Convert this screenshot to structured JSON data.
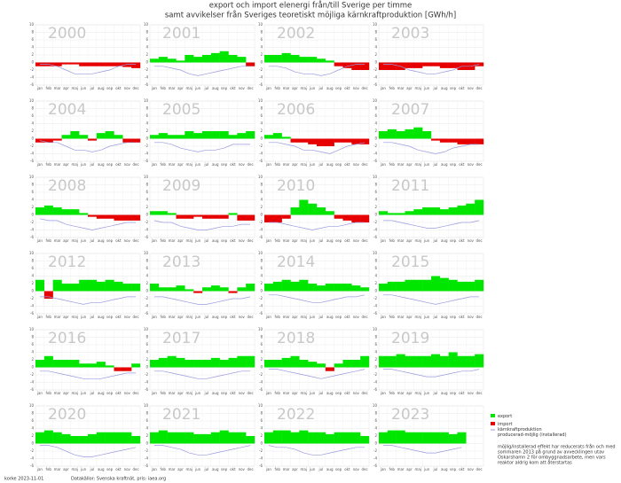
{
  "title": [
    "export och import elenergi från/till Sverige per timme",
    "samt avvikelser från Sveriges teoretiskt möjliga kärnkraftproduktion [GWh/h]"
  ],
  "legend": [
    {
      "name": "export",
      "color": "#00e600"
    },
    {
      "name": "import",
      "color": "#e60000"
    },
    {
      "name": "kärnkraftproduktion",
      "color": "#9a9ae0"
    },
    {
      "name": "producerad-möjlig (installerad)",
      "color": "#9a9ae0"
    }
  ],
  "note": [
    "möjlig/installerad effekt har reducerats från och med",
    "sommaren 2013 på grund av avvecklingen utav",
    "Oskarshamn 2 för ombyggnadsarbete, men vars",
    "reaktor aldrig kom att återstartas"
  ],
  "footer": [
    "korke 2023-11-01",
    "Datakällor: Svenska kraftnät, pris: iaea.org"
  ],
  "chart_data": [
    {
      "type": "area",
      "title": "2000",
      "categories": [
        "jan",
        "feb",
        "mar",
        "apr",
        "maj",
        "jun",
        "jul",
        "aug",
        "sep",
        "okt",
        "nov",
        "dec"
      ],
      "values": [
        -1,
        -1,
        -1,
        -0.5,
        -0.5,
        -1,
        -1,
        -1,
        -1,
        -1,
        -1.2,
        -1.5
      ],
      "line": [
        -0.5,
        -0.5,
        -1,
        -2,
        -3,
        -3,
        -3,
        -2.5,
        -2,
        -1,
        -0.5,
        -0.5
      ],
      "ylim": [
        -6,
        10
      ],
      "yticks": [
        -6,
        -4,
        -2,
        0,
        2,
        4,
        6,
        8,
        10
      ]
    },
    {
      "type": "area",
      "title": "2001",
      "categories": [
        "jan",
        "feb",
        "mar",
        "apr",
        "maj",
        "jun",
        "jul",
        "aug",
        "sep",
        "okt",
        "nov",
        "dec"
      ],
      "values": [
        1,
        1.5,
        1,
        0.5,
        2,
        1.5,
        2,
        2.5,
        3,
        2,
        1.5,
        -1
      ],
      "line": [
        -1,
        -1,
        -1.5,
        -2,
        -3,
        -3.5,
        -3,
        -2.5,
        -2,
        -1.5,
        -1,
        -1
      ],
      "ylim": [
        -6,
        10
      ],
      "yticks": [
        -6,
        -4,
        -2,
        0,
        2,
        4,
        6,
        8,
        10
      ]
    },
    {
      "type": "area",
      "title": "2002",
      "categories": [
        "jan",
        "feb",
        "mar",
        "apr",
        "maj",
        "jun",
        "jul",
        "aug",
        "sep",
        "okt",
        "nov",
        "dec"
      ],
      "values": [
        2,
        2,
        2.5,
        2,
        1.5,
        1.5,
        1,
        0.5,
        -1,
        -1.5,
        -2,
        -2
      ],
      "line": [
        -1,
        -1,
        -1.5,
        -2.5,
        -3,
        -3,
        -3.5,
        -3,
        -2,
        -1,
        -0.5,
        -0.5
      ],
      "ylim": [
        -6,
        10
      ],
      "yticks": [
        -6,
        -4,
        -2,
        0,
        2,
        4,
        6,
        8,
        10
      ]
    },
    {
      "type": "area",
      "title": "2003",
      "categories": [
        "jan",
        "feb",
        "mar",
        "apr",
        "maj",
        "jun",
        "jul",
        "aug",
        "sep",
        "okt",
        "nov",
        "dec"
      ],
      "values": [
        -2,
        -2,
        -2,
        -1.5,
        -1.5,
        -1,
        -1,
        -1.5,
        -1.5,
        -2,
        -2,
        -1
      ],
      "line": [
        -0.5,
        -0.5,
        -1,
        -2,
        -2.5,
        -3,
        -3,
        -2.5,
        -2,
        -1,
        -1,
        -0.5
      ],
      "ylim": [
        -6,
        10
      ],
      "yticks": [
        -6,
        -4,
        -2,
        0,
        2,
        4,
        6,
        8,
        10
      ]
    },
    {
      "type": "area",
      "title": "2004",
      "categories": [
        "jan",
        "feb",
        "mar",
        "apr",
        "maj",
        "jun",
        "jul",
        "aug",
        "sep",
        "okt",
        "nov",
        "dec"
      ],
      "values": [
        -1,
        -1,
        -0.5,
        1,
        2,
        1,
        -0.5,
        1.5,
        2,
        1,
        -1,
        -1
      ],
      "line": [
        -0.5,
        -1,
        -1,
        -2,
        -3,
        -3,
        -3.5,
        -3,
        -2,
        -1.5,
        -1,
        -1
      ],
      "ylim": [
        -6,
        10
      ],
      "yticks": [
        -6,
        -4,
        -2,
        0,
        2,
        4,
        6,
        8,
        10
      ]
    },
    {
      "type": "area",
      "title": "2005",
      "categories": [
        "jan",
        "feb",
        "mar",
        "apr",
        "maj",
        "jun",
        "jul",
        "aug",
        "sep",
        "okt",
        "nov",
        "dec"
      ],
      "values": [
        1,
        1.5,
        1,
        1,
        2,
        1.5,
        2,
        2,
        2,
        1,
        1.5,
        2
      ],
      "line": [
        -1,
        -1,
        -1.5,
        -2.5,
        -3,
        -3.5,
        -3,
        -3,
        -2.5,
        -1.5,
        -1.5,
        -1.5
      ],
      "ylim": [
        -6,
        10
      ],
      "yticks": [
        -6,
        -4,
        -2,
        0,
        2,
        4,
        6,
        8,
        10
      ]
    },
    {
      "type": "area",
      "title": "2006",
      "categories": [
        "jan",
        "feb",
        "mar",
        "apr",
        "maj",
        "jun",
        "jul",
        "aug",
        "sep",
        "okt",
        "nov",
        "dec"
      ],
      "values": [
        1,
        1.5,
        0.5,
        -1,
        -1,
        -1.5,
        -2,
        -2,
        -1,
        -1,
        -1.5,
        -1.5
      ],
      "line": [
        -1,
        -1,
        -1.5,
        -2,
        -3,
        -3,
        -3.5,
        -4,
        -3,
        -2,
        -1.5,
        -1
      ],
      "ylim": [
        -6,
        10
      ],
      "yticks": [
        -6,
        -4,
        -2,
        0,
        2,
        4,
        6,
        8,
        10
      ]
    },
    {
      "type": "area",
      "title": "2007",
      "categories": [
        "jan",
        "feb",
        "mar",
        "apr",
        "maj",
        "jun",
        "jul",
        "aug",
        "sep",
        "okt",
        "nov",
        "dec"
      ],
      "values": [
        2,
        2.5,
        2,
        2.5,
        3,
        2,
        -0.5,
        -1,
        -1,
        -1.5,
        -1.5,
        -1.5
      ],
      "line": [
        -1,
        -1,
        -1.5,
        -2,
        -3,
        -3.5,
        -4,
        -3.5,
        -2.5,
        -2,
        -1.5,
        -1.5
      ],
      "ylim": [
        -6,
        10
      ],
      "yticks": [
        -6,
        -4,
        -2,
        0,
        2,
        4,
        6,
        8,
        10
      ]
    },
    {
      "type": "area",
      "title": "2008",
      "categories": [
        "jan",
        "feb",
        "mar",
        "apr",
        "maj",
        "jun",
        "jul",
        "aug",
        "sep",
        "okt",
        "nov",
        "dec"
      ],
      "values": [
        2,
        2.5,
        2,
        1.5,
        1.5,
        0.5,
        -0.5,
        -1,
        -1,
        -1.5,
        -1.5,
        -1.5
      ],
      "line": [
        -1,
        -1.5,
        -1.5,
        -2.5,
        -3,
        -3.5,
        -4,
        -3.5,
        -3,
        -2.5,
        -2,
        -2
      ],
      "ylim": [
        -6,
        10
      ],
      "yticks": [
        -6,
        -4,
        -2,
        0,
        2,
        4,
        6,
        8,
        10
      ]
    },
    {
      "type": "area",
      "title": "2009",
      "categories": [
        "jan",
        "feb",
        "mar",
        "apr",
        "maj",
        "jun",
        "jul",
        "aug",
        "sep",
        "okt",
        "nov",
        "dec"
      ],
      "values": [
        1,
        1,
        0.5,
        -1,
        -1,
        -0.5,
        -1,
        -1,
        -1,
        0.5,
        -1.5,
        -1.5
      ],
      "line": [
        -1.5,
        -2,
        -2,
        -3,
        -3.5,
        -4,
        -4,
        -3.5,
        -3,
        -3,
        -2.5,
        -2.5
      ],
      "ylim": [
        -6,
        10
      ],
      "yticks": [
        -6,
        -4,
        -2,
        0,
        2,
        4,
        6,
        8,
        10
      ]
    },
    {
      "type": "area",
      "title": "2010",
      "categories": [
        "jan",
        "feb",
        "mar",
        "apr",
        "maj",
        "jun",
        "jul",
        "aug",
        "sep",
        "okt",
        "nov",
        "dec"
      ],
      "values": [
        -2,
        -2,
        -1,
        2,
        4,
        3,
        2,
        1,
        -1,
        -1.5,
        -2,
        -2
      ],
      "line": [
        -2,
        -2,
        -2.5,
        -3,
        -3.5,
        -4,
        -3.5,
        -3,
        -3,
        -2.5,
        -2,
        -2
      ],
      "ylim": [
        -6,
        10
      ],
      "yticks": [
        -6,
        -4,
        -2,
        0,
        2,
        4,
        6,
        8,
        10
      ]
    },
    {
      "type": "area",
      "title": "2011",
      "categories": [
        "jan",
        "feb",
        "mar",
        "apr",
        "maj",
        "jun",
        "jul",
        "aug",
        "sep",
        "okt",
        "nov",
        "dec"
      ],
      "values": [
        1,
        0.5,
        0.5,
        1,
        1.5,
        2,
        2,
        1.5,
        2,
        2.5,
        3,
        4
      ],
      "line": [
        -1.5,
        -1.5,
        -2,
        -2.5,
        -3,
        -3.5,
        -3.5,
        -3,
        -2.5,
        -2,
        -2,
        -1.5
      ],
      "ylim": [
        -6,
        10
      ],
      "yticks": [
        -6,
        -4,
        -2,
        0,
        2,
        4,
        6,
        8,
        10
      ]
    },
    {
      "type": "area",
      "title": "2012",
      "categories": [
        "jan",
        "feb",
        "mar",
        "apr",
        "maj",
        "jun",
        "jul",
        "aug",
        "sep",
        "okt",
        "nov",
        "dec"
      ],
      "values": [
        3,
        -2,
        3,
        2,
        2,
        3,
        3,
        2.5,
        3,
        2.5,
        2,
        2
      ],
      "line": [
        -1.5,
        -1.5,
        -2,
        -2.5,
        -3,
        -3.5,
        -3,
        -3,
        -2.5,
        -2,
        -1.5,
        -1.5
      ],
      "ylim": [
        -6,
        10
      ],
      "yticks": [
        -6,
        -4,
        -2,
        0,
        2,
        4,
        6,
        8,
        10
      ]
    },
    {
      "type": "area",
      "title": "2013",
      "categories": [
        "jan",
        "feb",
        "mar",
        "apr",
        "maj",
        "jun",
        "jul",
        "aug",
        "sep",
        "okt",
        "nov",
        "dec"
      ],
      "values": [
        2,
        1,
        1,
        1.5,
        0.5,
        -0.5,
        1,
        1.5,
        1,
        -0.5,
        1,
        2
      ],
      "line": [
        -1.5,
        -1.5,
        -2,
        -2.5,
        -3,
        -3.5,
        -3.5,
        -3,
        -2.5,
        -2,
        -2,
        -1.5
      ],
      "ylim": [
        -6,
        10
      ],
      "yticks": [
        -6,
        -4,
        -2,
        0,
        2,
        4,
        6,
        8,
        10
      ]
    },
    {
      "type": "area",
      "title": "2014",
      "categories": [
        "jan",
        "feb",
        "mar",
        "apr",
        "maj",
        "jun",
        "jul",
        "aug",
        "sep",
        "okt",
        "nov",
        "dec"
      ],
      "values": [
        2,
        2.5,
        3,
        2.5,
        3,
        2,
        1.5,
        2,
        2,
        2,
        1.5,
        1
      ],
      "line": [
        -1,
        -1,
        -1.5,
        -2,
        -2.5,
        -3,
        -3,
        -2.5,
        -2,
        -1.5,
        -1.5,
        -1
      ],
      "ylim": [
        -6,
        10
      ],
      "yticks": [
        -6,
        -4,
        -2,
        0,
        2,
        4,
        6,
        8,
        10
      ]
    },
    {
      "type": "area",
      "title": "2015",
      "categories": [
        "jan",
        "feb",
        "mar",
        "apr",
        "maj",
        "jun",
        "jul",
        "aug",
        "sep",
        "okt",
        "nov",
        "dec"
      ],
      "values": [
        2,
        2.5,
        2.5,
        3,
        3,
        3,
        4,
        3.5,
        3,
        2.5,
        2.5,
        3
      ],
      "line": [
        -1,
        -1,
        -1.5,
        -2,
        -2.5,
        -3,
        -3.5,
        -3,
        -2.5,
        -2,
        -1.5,
        -1.5
      ],
      "ylim": [
        -6,
        10
      ],
      "yticks": [
        -6,
        -4,
        -2,
        0,
        2,
        4,
        6,
        8,
        10
      ]
    },
    {
      "type": "area",
      "title": "2016",
      "categories": [
        "jan",
        "feb",
        "mar",
        "apr",
        "maj",
        "jun",
        "jul",
        "aug",
        "sep",
        "okt",
        "nov",
        "dec"
      ],
      "values": [
        2,
        3,
        2,
        2,
        2,
        1,
        1,
        1.5,
        0.5,
        -1,
        -1,
        1
      ],
      "line": [
        -1,
        -1,
        -1.5,
        -2,
        -2.5,
        -3,
        -3,
        -3,
        -2.5,
        -2,
        -1.5,
        -1.5
      ],
      "ylim": [
        -6,
        10
      ],
      "yticks": [
        -6,
        -4,
        -2,
        0,
        2,
        4,
        6,
        8,
        10
      ]
    },
    {
      "type": "area",
      "title": "2017",
      "categories": [
        "jan",
        "feb",
        "mar",
        "apr",
        "maj",
        "jun",
        "jul",
        "aug",
        "sep",
        "okt",
        "nov",
        "dec"
      ],
      "values": [
        2,
        2.5,
        3,
        2.5,
        2,
        2,
        2,
        2.5,
        2,
        2.5,
        3,
        3
      ],
      "line": [
        -1,
        -1,
        -1.5,
        -2,
        -2.5,
        -3,
        -3,
        -2.5,
        -2,
        -1.5,
        -1,
        -1
      ],
      "ylim": [
        -6,
        10
      ],
      "yticks": [
        -6,
        -4,
        -2,
        0,
        2,
        4,
        6,
        8,
        10
      ]
    },
    {
      "type": "area",
      "title": "2018",
      "categories": [
        "jan",
        "feb",
        "mar",
        "apr",
        "maj",
        "jun",
        "jul",
        "aug",
        "sep",
        "okt",
        "nov",
        "dec"
      ],
      "values": [
        2,
        2,
        2.5,
        3,
        2,
        1.5,
        1,
        -1,
        1,
        2,
        2,
        3
      ],
      "line": [
        -0.5,
        -0.5,
        -1,
        -1.5,
        -2,
        -2.5,
        -3,
        -2.5,
        -2,
        -1.5,
        -1,
        -0.5
      ],
      "ylim": [
        -6,
        10
      ],
      "yticks": [
        -6,
        -4,
        -2,
        0,
        2,
        4,
        6,
        8,
        10
      ]
    },
    {
      "type": "area",
      "title": "2019",
      "categories": [
        "jan",
        "feb",
        "mar",
        "apr",
        "maj",
        "jun",
        "jul",
        "aug",
        "sep",
        "okt",
        "nov",
        "dec"
      ],
      "values": [
        3,
        3,
        3.5,
        3,
        3,
        3,
        3.5,
        3,
        4,
        3,
        3,
        3.5
      ],
      "line": [
        -0.5,
        -0.5,
        -1,
        -1.5,
        -2,
        -2.5,
        -2.5,
        -2,
        -1.5,
        -1,
        -1,
        -0.5
      ],
      "ylim": [
        -6,
        10
      ],
      "yticks": [
        -6,
        -4,
        -2,
        0,
        2,
        4,
        6,
        8,
        10
      ]
    },
    {
      "type": "area",
      "title": "2020",
      "categories": [
        "jan",
        "feb",
        "mar",
        "apr",
        "maj",
        "jun",
        "jul",
        "aug",
        "sep",
        "okt",
        "nov",
        "dec"
      ],
      "values": [
        3,
        3.5,
        3,
        2.5,
        2,
        2,
        2.5,
        3,
        3,
        3,
        3,
        2
      ],
      "line": [
        -0.5,
        -0.5,
        -1,
        -2,
        -3,
        -3.5,
        -3.5,
        -3,
        -2.5,
        -2,
        -1.5,
        -1
      ],
      "ylim": [
        -6,
        10
      ],
      "yticks": [
        -6,
        -4,
        -2,
        0,
        2,
        4,
        6,
        8,
        10
      ]
    },
    {
      "type": "area",
      "title": "2021",
      "categories": [
        "jan",
        "feb",
        "mar",
        "apr",
        "maj",
        "jun",
        "jul",
        "aug",
        "sep",
        "okt",
        "nov",
        "dec"
      ],
      "values": [
        3,
        3.5,
        3,
        3,
        3,
        2.5,
        2.5,
        3,
        3.5,
        3,
        3,
        2
      ],
      "line": [
        -0.5,
        -0.5,
        -1,
        -1.5,
        -2.5,
        -3,
        -3,
        -2.5,
        -2,
        -1.5,
        -1,
        -0.5
      ],
      "ylim": [
        -6,
        10
      ],
      "yticks": [
        -6,
        -4,
        -2,
        0,
        2,
        4,
        6,
        8,
        10
      ]
    },
    {
      "type": "area",
      "title": "2022",
      "categories": [
        "jan",
        "feb",
        "mar",
        "apr",
        "maj",
        "jun",
        "jul",
        "aug",
        "sep",
        "okt",
        "nov",
        "dec"
      ],
      "values": [
        3,
        3.5,
        3.5,
        3,
        3.5,
        3,
        3,
        2.5,
        3,
        3,
        3,
        2
      ],
      "line": [
        -0.5,
        -1,
        -1,
        -1.5,
        -2.5,
        -3,
        -3,
        -2.5,
        -2,
        -1.5,
        -1,
        -1
      ],
      "ylim": [
        -6,
        10
      ],
      "yticks": [
        -6,
        -4,
        -2,
        0,
        2,
        4,
        6,
        8,
        10
      ]
    },
    {
      "type": "area",
      "title": "2023",
      "categories": [
        "jan",
        "feb",
        "mar",
        "apr",
        "maj",
        "jun",
        "jul",
        "aug",
        "sep",
        "okt",
        "nov",
        "dec"
      ],
      "values": [
        3,
        3.5,
        3.5,
        3,
        3,
        3,
        3,
        3,
        2.5,
        3,
        null,
        null
      ],
      "line": [
        -0.5,
        -0.5,
        -1,
        -1.5,
        -2,
        -2.5,
        -2.5,
        -2,
        -1.5,
        -1,
        null,
        null
      ],
      "ylim": [
        -6,
        10
      ],
      "yticks": [
        -6,
        -4,
        -2,
        0,
        2,
        4,
        6,
        8,
        10
      ]
    }
  ]
}
